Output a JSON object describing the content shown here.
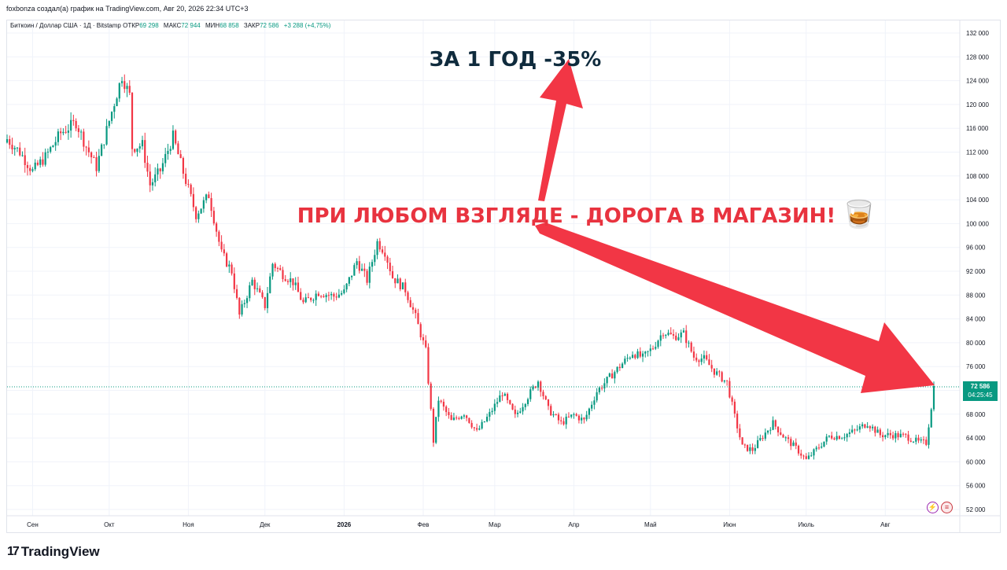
{
  "header": {
    "attribution": "foxbonza создал(а) график на TradingView.com, Авг 20, 2026 22:34 UTC+3"
  },
  "legend": {
    "symbol": "Биткоин / Доллар США · 1Д · Bitstamp",
    "open_label": "ОТКР",
    "open": "69 298",
    "high_label": "МАКС",
    "high": "72 944",
    "low_label": "МИН",
    "low": "68 858",
    "close_label": "ЗАКР",
    "close": "72 586",
    "change": "+3 288 (+4,75%)"
  },
  "annotations": {
    "top_text": "ЗА 1 ГОД -35%",
    "middle_text": "ПРИ ЛЮБОМ ВЗГЛЯДЕ - ДОРОГА В МАГАЗИН!",
    "emoji": "🥃"
  },
  "price_badge": {
    "price": "72 586",
    "countdown": "04:25:45"
  },
  "brand": {
    "name": "TradingView"
  },
  "colors": {
    "up": "#089981",
    "down": "#f23645",
    "arrow": "#f23645",
    "top_text": "#0f2b3d",
    "middle_text": "#e8333f",
    "grid": "#f0f3fa"
  },
  "chart_data": {
    "type": "candlestick",
    "title": "Биткоин / Доллар США · 1Д · Bitstamp",
    "ylim": [
      50000,
      134000
    ],
    "y_ticks": [
      132000,
      128000,
      124000,
      120000,
      116000,
      112000,
      108000,
      104000,
      100000,
      96000,
      92000,
      88000,
      84000,
      80000,
      76000,
      72000,
      68000,
      64000,
      60000,
      56000,
      52000
    ],
    "y_tick_labels": [
      "132 000",
      "128 000",
      "124 000",
      "120 000",
      "116 000",
      "112 000",
      "108 000",
      "104 000",
      "100 000",
      "96 000",
      "92 000",
      "88 000",
      "84 000",
      "80 000",
      "76 000",
      "72 000",
      "68 000",
      "64 000",
      "60 000",
      "56 000",
      "52 000"
    ],
    "x_axis_labels": [
      "Сен",
      "Окт",
      "Ноя",
      "Дек",
      "2026",
      "Фев",
      "Мар",
      "Апр",
      "Май",
      "Июн",
      "Июль",
      "Авг"
    ],
    "x_axis_dates": [
      "2025-09-01",
      "2025-10-01",
      "2025-11-01",
      "2025-12-01",
      "2026-01-01",
      "2026-02-01",
      "2026-03-01",
      "2026-04-01",
      "2026-05-01",
      "2026-06-01",
      "2026-07-01",
      "2026-08-01"
    ],
    "x_range": [
      "2025-08-22",
      "2026-08-30"
    ],
    "current_price": 72586,
    "close_path": [
      [
        "2025-08-22",
        114200
      ],
      [
        "2025-08-27",
        112000
      ],
      [
        "2025-09-01",
        108800
      ],
      [
        "2025-09-06",
        111200
      ],
      [
        "2025-09-12",
        115200
      ],
      [
        "2025-09-18",
        117000
      ],
      [
        "2025-09-22",
        112900
      ],
      [
        "2025-09-26",
        109500
      ],
      [
        "2025-10-02",
        118800
      ],
      [
        "2025-10-06",
        124800
      ],
      [
        "2025-10-09",
        121500
      ],
      [
        "2025-10-10",
        112800
      ],
      [
        "2025-10-14",
        113200
      ],
      [
        "2025-10-17",
        106500
      ],
      [
        "2025-10-21",
        108900
      ],
      [
        "2025-10-26",
        114600
      ],
      [
        "2025-10-30",
        108600
      ],
      [
        "2025-11-04",
        101500
      ],
      [
        "2025-11-09",
        104800
      ],
      [
        "2025-11-14",
        95000
      ],
      [
        "2025-11-18",
        92000
      ],
      [
        "2025-11-21",
        84600
      ],
      [
        "2025-11-26",
        90400
      ],
      [
        "2025-12-01",
        86200
      ],
      [
        "2025-12-04",
        93300
      ],
      [
        "2025-12-08",
        91500
      ],
      [
        "2025-12-12",
        90200
      ],
      [
        "2025-12-16",
        86600
      ],
      [
        "2025-12-22",
        88500
      ],
      [
        "2025-12-28",
        87800
      ],
      [
        "2026-01-01",
        88500
      ],
      [
        "2026-01-06",
        93700
      ],
      [
        "2026-01-10",
        90500
      ],
      [
        "2026-01-14",
        96900
      ],
      [
        "2026-01-17",
        95300
      ],
      [
        "2026-01-20",
        91000
      ],
      [
        "2026-01-25",
        88900
      ],
      [
        "2026-01-29",
        84300
      ],
      [
        "2026-02-02",
        78600
      ],
      [
        "2026-02-05",
        63500
      ],
      [
        "2026-02-07",
        70500
      ],
      [
        "2026-02-12",
        66800
      ],
      [
        "2026-02-17",
        68200
      ],
      [
        "2026-02-22",
        65000
      ],
      [
        "2026-02-27",
        68000
      ],
      [
        "2026-03-04",
        71600
      ],
      [
        "2026-03-09",
        67600
      ],
      [
        "2026-03-14",
        71000
      ],
      [
        "2026-03-18",
        73600
      ],
      [
        "2026-03-22",
        68800
      ],
      [
        "2026-03-27",
        66500
      ],
      [
        "2026-04-01",
        67900
      ],
      [
        "2026-04-05",
        66900
      ],
      [
        "2026-04-10",
        71800
      ],
      [
        "2026-04-15",
        74200
      ],
      [
        "2026-04-20",
        76500
      ],
      [
        "2026-04-24",
        78300
      ],
      [
        "2026-04-28",
        77500
      ],
      [
        "2026-05-02",
        79200
      ],
      [
        "2026-05-06",
        81900
      ],
      [
        "2026-05-10",
        81000
      ],
      [
        "2026-05-14",
        81500
      ],
      [
        "2026-05-18",
        77600
      ],
      [
        "2026-05-22",
        77300
      ],
      [
        "2026-05-26",
        75200
      ],
      [
        "2026-05-31",
        73300
      ],
      [
        "2026-06-03",
        67600
      ],
      [
        "2026-06-06",
        62500
      ],
      [
        "2026-06-10",
        62000
      ],
      [
        "2026-06-14",
        64300
      ],
      [
        "2026-06-18",
        66500
      ],
      [
        "2026-06-22",
        64300
      ],
      [
        "2026-06-27",
        62300
      ],
      [
        "2026-07-01",
        60300
      ],
      [
        "2026-07-05",
        62100
      ],
      [
        "2026-07-10",
        64300
      ],
      [
        "2026-07-15",
        64300
      ],
      [
        "2026-07-20",
        65200
      ],
      [
        "2026-07-25",
        66500
      ],
      [
        "2026-07-30",
        64500
      ],
      [
        "2026-08-04",
        64500
      ],
      [
        "2026-08-09",
        64300
      ],
      [
        "2026-08-14",
        63300
      ],
      [
        "2026-08-17",
        63200
      ],
      [
        "2026-08-19",
        69298
      ],
      [
        "2026-08-20",
        72586
      ]
    ]
  }
}
